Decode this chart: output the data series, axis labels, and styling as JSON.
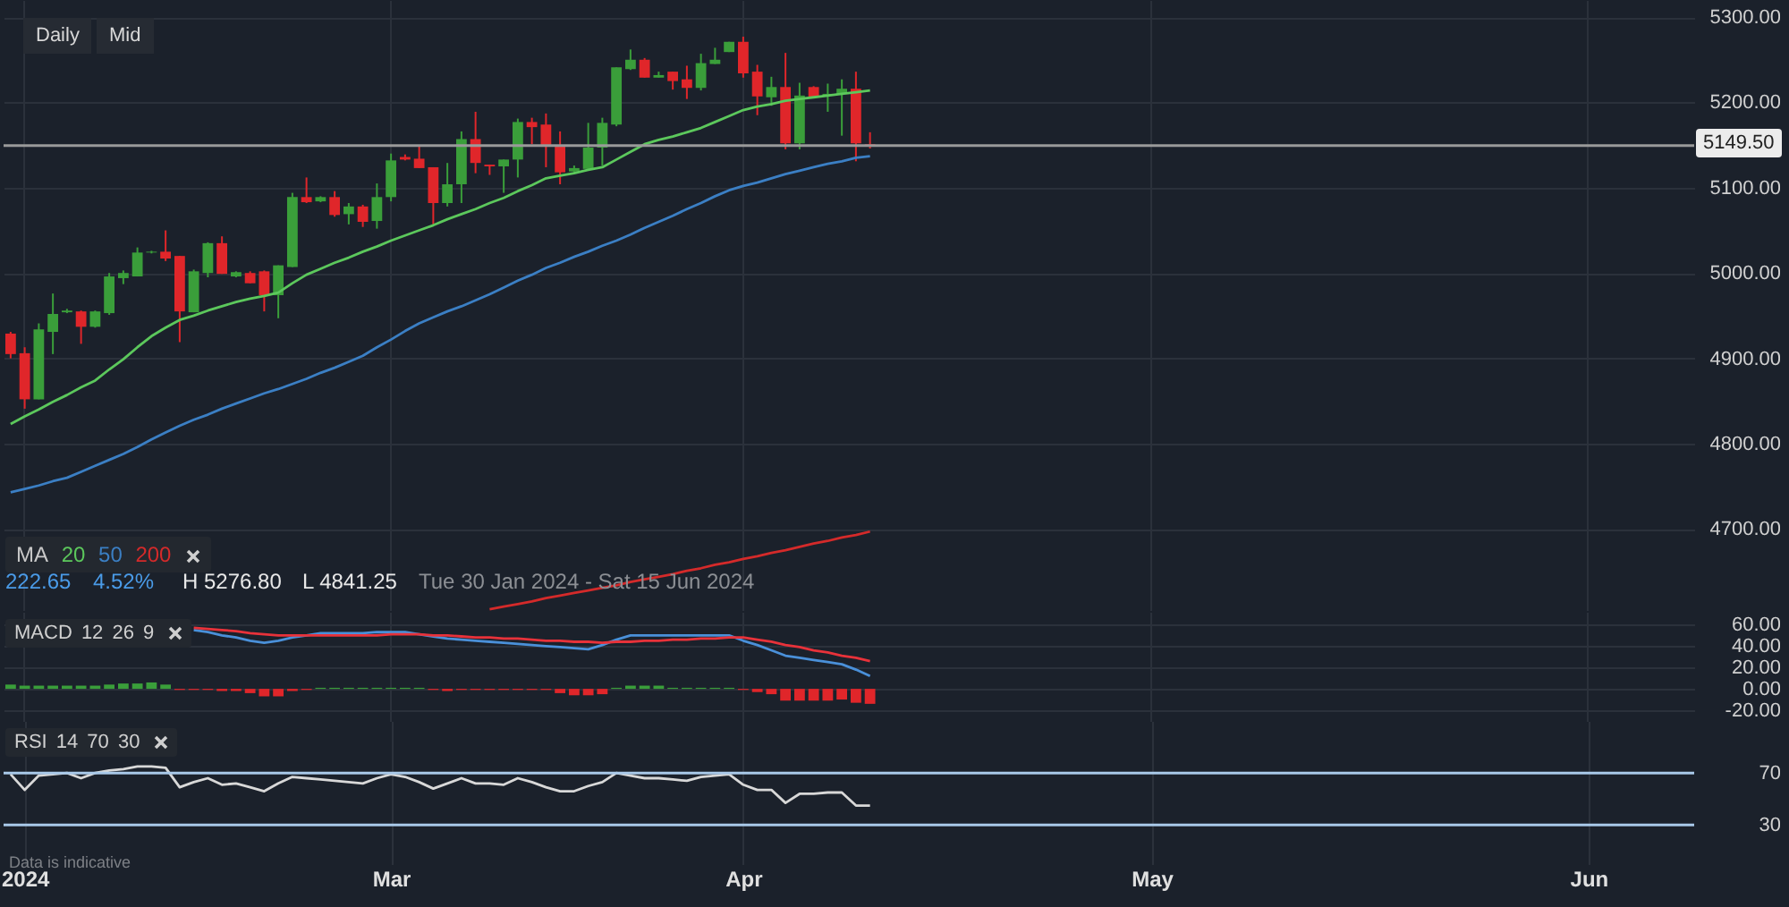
{
  "chart_data": [
    {
      "type": "candlestick",
      "annotations": [
        "Daily",
        "Mid",
        "222.65",
        "4.52%",
        "H 5276.80",
        "L 4841.25",
        "Tue 30 Jan 2024 - Sat 15 Jun 2024"
      ],
      "legend_title": "MA",
      "legend": "bottom left",
      "categories": [
        null,
        null,
        null,
        null,
        null,
        null,
        null,
        null,
        null,
        null,
        null,
        null,
        null,
        null,
        null,
        null,
        null,
        null,
        null,
        null,
        null,
        null,
        null,
        null,
        null,
        null,
        null,
        null,
        null,
        null,
        null,
        null,
        null,
        null,
        null,
        null,
        null,
        null,
        null,
        null,
        null,
        null,
        null,
        null,
        null,
        null,
        null,
        null,
        null,
        null,
        null,
        null,
        null,
        null,
        null,
        null,
        null,
        null,
        null,
        null,
        null,
        null,
        null,
        null,
        null,
        null,
        null,
        null,
        null,
        null,
        null,
        null,
        null,
        null,
        null,
        null,
        null,
        null,
        null,
        null,
        null,
        null,
        null,
        null,
        null,
        null,
        null,
        null,
        null,
        null,
        null,
        null,
        null,
        null,
        null,
        null,
        null,
        null,
        null,
        null,
        null,
        null,
        null,
        null,
        null,
        null,
        null,
        null,
        null,
        null,
        null,
        null,
        null,
        null,
        null,
        null,
        null,
        null,
        null,
        null
      ],
      "ohlc": [
        [
          4929,
          4931,
          4900,
          4905
        ],
        [
          4906,
          4913,
          4841,
          4852
        ],
        [
          4852,
          4941,
          4852,
          4934
        ],
        [
          4931,
          4976,
          4905,
          4952
        ],
        [
          4954,
          4958,
          4953,
          4956
        ],
        [
          4955,
          4956,
          4917,
          4937
        ],
        [
          4937,
          4956,
          4936,
          4955
        ],
        [
          4953,
          5000,
          4951,
          4996
        ],
        [
          4994,
          5003,
          4987,
          5000
        ],
        [
          4996,
          5030,
          4996,
          5024
        ],
        [
          5024,
          5026,
          5023,
          5025
        ],
        [
          5025,
          5050,
          5014,
          5017
        ],
        [
          5020,
          5020,
          4919,
          4955
        ],
        [
          4954,
          5004,
          4954,
          5002
        ],
        [
          5000,
          5036,
          4995,
          5035
        ],
        [
          5035,
          5043,
          4999,
          4999
        ],
        [
          4996,
          5002,
          4995,
          5001
        ],
        [
          5000,
          5002,
          4988,
          4988
        ],
        [
          5002,
          5003,
          4955,
          4974
        ],
        [
          4974,
          5009,
          4947,
          5009
        ],
        [
          5007,
          5094,
          5007,
          5089
        ],
        [
          5089,
          5112,
          5082,
          5083
        ],
        [
          5084,
          5090,
          5083,
          5089
        ],
        [
          5089,
          5096,
          5066,
          5068
        ],
        [
          5069,
          5082,
          5057,
          5078
        ],
        [
          5078,
          5080,
          5054,
          5060
        ],
        [
          5061,
          5105,
          5052,
          5089
        ],
        [
          5089,
          5140,
          5084,
          5132
        ],
        [
          5136,
          5139,
          5132,
          5133
        ],
        [
          5134,
          5150,
          5123,
          5123
        ],
        [
          5124,
          5124,
          5057,
          5082
        ],
        [
          5082,
          5129,
          5078,
          5104
        ],
        [
          5104,
          5166,
          5082,
          5157
        ],
        [
          5157,
          5189,
          5117,
          5129
        ],
        [
          5127,
          5127,
          5115,
          5125
        ],
        [
          5125,
          5133,
          5094,
          5133
        ],
        [
          5133,
          5181,
          5112,
          5177
        ],
        [
          5177,
          5182,
          5151,
          5171
        ],
        [
          5174,
          5187,
          5124,
          5148
        ],
        [
          5149,
          5166,
          5104,
          5118
        ],
        [
          5119,
          5126,
          5117,
          5123
        ],
        [
          5122,
          5176,
          5122,
          5147
        ],
        [
          5147,
          5182,
          5126,
          5176
        ],
        [
          5174,
          5241,
          5172,
          5241
        ],
        [
          5239,
          5262,
          5238,
          5250
        ],
        [
          5250,
          5252,
          5229,
          5229
        ],
        [
          5229,
          5236,
          5229,
          5232
        ],
        [
          5236,
          5236,
          5215,
          5225
        ],
        [
          5227,
          5243,
          5204,
          5217
        ],
        [
          5217,
          5257,
          5214,
          5246
        ],
        [
          5245,
          5264,
          5245,
          5250
        ],
        [
          5259,
          5271,
          5259,
          5271
        ],
        [
          5271,
          5277,
          5229,
          5234
        ],
        [
          5236,
          5244,
          5185,
          5207
        ],
        [
          5206,
          5230,
          5196,
          5218
        ],
        [
          5218,
          5258,
          5145,
          5152
        ],
        [
          5152,
          5223,
          5145,
          5208
        ],
        [
          5218,
          5219,
          5206,
          5206
        ],
        [
          5208,
          5222,
          5189,
          5210
        ],
        [
          5210,
          5227,
          5161,
          5216
        ],
        [
          5216,
          5236,
          5131,
          5152
        ],
        [
          5151,
          5165,
          5146,
          5149.5
        ],
        null,
        null,
        null,
        null,
        null,
        null,
        null,
        null,
        null,
        null,
        null,
        null,
        null,
        null,
        null,
        null,
        null,
        null,
        null,
        null,
        null,
        null,
        null,
        null,
        null,
        null,
        null,
        null,
        null,
        null,
        null,
        null,
        null,
        null,
        null,
        null,
        null,
        null,
        null,
        null,
        null,
        null,
        null,
        null,
        null,
        null,
        null,
        null,
        null,
        null,
        null,
        null,
        null,
        null,
        null,
        null,
        null,
        null
      ],
      "colors": [
        "#e0262a",
        "#e0262a",
        "#3a9e3a",
        "#3a9e3a",
        "#3a9e3a",
        "#e0262a",
        "#3a9e3a",
        "#3a9e3a",
        "#3a9e3a",
        "#3a9e3a",
        "#3a9e3a",
        "#e0262a",
        "#e0262a",
        "#3a9e3a",
        "#3a9e3a",
        "#e0262a",
        "#3a9e3a",
        "#e0262a",
        "#e0262a",
        "#3a9e3a",
        "#3a9e3a",
        "#e0262a",
        "#3a9e3a",
        "#e0262a",
        "#3a9e3a",
        "#e0262a",
        "#3a9e3a",
        "#3a9e3a",
        "#e0262a",
        "#e0262a",
        "#e0262a",
        "#3a9e3a",
        "#3a9e3a",
        "#e0262a",
        "#e0262a",
        "#3a9e3a",
        "#3a9e3a",
        "#e0262a",
        "#e0262a",
        "#e0262a",
        "#3a9e3a",
        "#3a9e3a",
        "#3a9e3a",
        "#3a9e3a",
        "#3a9e3a",
        "#e0262a",
        "#3a9e3a",
        "#e0262a",
        "#e0262a",
        "#3a9e3a",
        "#3a9e3a",
        "#3a9e3a",
        "#e0262a",
        "#e0262a",
        "#3a9e3a",
        "#e0262a",
        "#3a9e3a",
        "#e0262a",
        "#3a9e3a",
        "#3a9e3a",
        "#e0262a",
        "#e0262a",
        null,
        null,
        null,
        null,
        null,
        null,
        null,
        null,
        null,
        null,
        null,
        null,
        null,
        null,
        null,
        null,
        null,
        null,
        null,
        null,
        null,
        null,
        null,
        null,
        null,
        null,
        null,
        null,
        null,
        null,
        null,
        null,
        null,
        null,
        null,
        null,
        null,
        null,
        null,
        null,
        null,
        null,
        null,
        null,
        null,
        null,
        null,
        null,
        null,
        null,
        null,
        null,
        null,
        null,
        null,
        null,
        null,
        null
      ],
      "series": [
        {
          "name": "20",
          "type": "line",
          "color": "#5cc85c",
          "values": [
            4823,
            4832,
            4840,
            4849,
            4857,
            4866,
            4874,
            4887,
            4899,
            4913,
            4926,
            4936,
            4945,
            4950,
            4956,
            4961,
            4966,
            4970,
            4973,
            4977,
            4988,
            4998,
            5005,
            5012,
            5018,
            5025,
            5031,
            5038,
            5044,
            5050,
            5056,
            5063,
            5069,
            5075,
            5082,
            5088,
            5096,
            5103,
            5111,
            5114,
            5117,
            5121,
            5124,
            5133,
            5142,
            5151,
            5156,
            5160,
            5165,
            5170,
            5177,
            5184,
            5191,
            5195,
            5198,
            5202,
            5204,
            5206,
            5208,
            5210,
            5212,
            5214,
            null,
            null,
            null,
            null,
            null,
            null,
            null,
            null,
            null,
            null,
            null,
            null,
            null,
            null,
            null,
            null,
            null,
            null,
            null,
            null,
            null,
            null,
            null,
            null,
            null,
            null,
            null,
            null,
            null,
            null,
            null,
            null,
            null,
            null,
            null,
            null,
            null,
            null,
            null,
            null,
            null,
            null,
            null,
            null,
            null,
            null,
            null,
            null,
            null,
            null,
            null,
            null,
            null,
            null,
            null,
            null,
            null,
            null
          ]
        },
        {
          "name": "50",
          "type": "line",
          "color": "#3b7fc4",
          "values": [
            4743,
            4747,
            4751,
            4756,
            4760,
            4767,
            4774,
            4781,
            4788,
            4796,
            4805,
            4813,
            4821,
            4828,
            4834,
            4841,
            4847,
            4853,
            4859,
            4864,
            4870,
            4876,
            4883,
            4889,
            4896,
            4903,
            4913,
            4922,
            4932,
            4941,
            4948,
            4955,
            4961,
            4968,
            4975,
            4983,
            4991,
            4998,
            5006,
            5012,
            5019,
            5025,
            5032,
            5038,
            5045,
            5053,
            5060,
            5067,
            5075,
            5082,
            5090,
            5097,
            5102,
            5106,
            5111,
            5116,
            5120,
            5124,
            5128,
            5131,
            5135,
            5137,
            null,
            null,
            null,
            null,
            null,
            null,
            null,
            null,
            null,
            null,
            null,
            null,
            null,
            null,
            null,
            null,
            null,
            null,
            null,
            null,
            null,
            null,
            null,
            null,
            null,
            null,
            null,
            null,
            null,
            null,
            null,
            null,
            null,
            null,
            null,
            null,
            null,
            null,
            null,
            null,
            null,
            null,
            null,
            null,
            null,
            null,
            null,
            null,
            null,
            null,
            null,
            null,
            null,
            null,
            null,
            null,
            null,
            null
          ]
        },
        {
          "name": "200",
          "type": "line",
          "color": "#d42a2a",
          "values": [
            null,
            null,
            null,
            null,
            null,
            null,
            null,
            null,
            null,
            null,
            null,
            null,
            null,
            null,
            null,
            null,
            null,
            null,
            null,
            null,
            null,
            null,
            null,
            null,
            null,
            null,
            null,
            null,
            null,
            null,
            null,
            null,
            null,
            null,
            4606,
            4609,
            4612,
            4615,
            4619,
            4622,
            4625,
            4628,
            4631,
            4634,
            4638,
            4641,
            4644,
            4647,
            4651,
            4654,
            4658,
            4661,
            4665,
            4668,
            4672,
            4675,
            4679,
            4683,
            4686,
            4690,
            4693,
            4697,
            null,
            null,
            null,
            null,
            null,
            null,
            null,
            null,
            null,
            null,
            null,
            null,
            null,
            null,
            null,
            null,
            null,
            null,
            null,
            null,
            null,
            null,
            null,
            null,
            null,
            null,
            null,
            null,
            null,
            null,
            null,
            null,
            null,
            null,
            null,
            null,
            null,
            null,
            null,
            null,
            null,
            null,
            null,
            null,
            null,
            null,
            null,
            null,
            null,
            null,
            null,
            null,
            null,
            null,
            null,
            null,
            null,
            null
          ]
        }
      ],
      "ylim": [
        4605,
        5320
      ],
      "yticks": [
        {
          "value": 4700,
          "label": "4700.00"
        },
        {
          "value": 4800,
          "label": "4800.00"
        },
        {
          "value": 4900,
          "label": "4900.00"
        },
        {
          "value": 5000,
          "label": "5000.00"
        },
        {
          "value": 5100,
          "label": "5100.00"
        },
        {
          "value": 5200,
          "label": "5200.00"
        },
        {
          "value": 5300,
          "label": "5300.00"
        }
      ],
      "grid": true,
      "tick_labels": "y",
      "ref_lines": [
        {
          "axis": "y",
          "value": 5149.5,
          "label": "5149.50",
          "color": "#9a9a9a"
        }
      ]
    },
    {
      "type": "line",
      "title": "MACD 12 26 9",
      "categories": [
        null,
        null,
        null,
        null,
        null,
        null,
        null,
        null,
        null,
        null,
        null,
        null,
        null,
        null,
        null,
        null,
        null,
        null,
        null,
        null,
        null,
        null,
        null,
        null,
        null,
        null,
        null,
        null,
        null,
        null,
        null,
        null,
        null,
        null,
        null,
        null,
        null,
        null,
        null,
        null,
        null,
        null,
        null,
        null,
        null,
        null,
        null,
        null,
        null,
        null,
        null,
        null,
        null,
        null,
        null,
        null,
        null,
        null,
        null,
        null,
        null,
        null,
        null,
        null,
        null,
        null,
        null,
        null,
        null,
        null,
        null,
        null,
        null,
        null,
        null,
        null,
        null,
        null,
        null,
        null,
        null,
        null,
        null,
        null,
        null,
        null,
        null,
        null,
        null,
        null,
        null,
        null,
        null,
        null,
        null,
        null,
        null,
        null,
        null,
        null,
        null,
        null,
        null,
        null,
        null,
        null,
        null,
        null,
        null,
        null,
        null,
        null,
        null,
        null,
        null,
        null,
        null,
        null,
        null,
        null
      ],
      "series": [
        {
          "type": "line",
          "color": "#4a90d9",
          "values": [
            null,
            null,
            null,
            null,
            null,
            null,
            null,
            null,
            null,
            null,
            null,
            null,
            null,
            55,
            53,
            50,
            48,
            45,
            43,
            45,
            48,
            50,
            52,
            52,
            52,
            52,
            53,
            53,
            53,
            51,
            49,
            47,
            46,
            45,
            44,
            43,
            42,
            41,
            40,
            39,
            38,
            37,
            41,
            46,
            50,
            50,
            50,
            50,
            50,
            50,
            50,
            50,
            45,
            41,
            36,
            31,
            29,
            27,
            25,
            23,
            18,
            12,
            null,
            null,
            null,
            null,
            null,
            null,
            null,
            null,
            null,
            null,
            null,
            null,
            null,
            null,
            null,
            null,
            null,
            null,
            null,
            null,
            null,
            null,
            null,
            null,
            null,
            null,
            null,
            null,
            null,
            null,
            null,
            null,
            null,
            null,
            null,
            null,
            null,
            null,
            null,
            null,
            null,
            null,
            null,
            null,
            null,
            null,
            null,
            null,
            null,
            null,
            null,
            null,
            null,
            null,
            null,
            null,
            null,
            null
          ]
        },
        {
          "type": "line",
          "color": "#e8323a",
          "values": [
            null,
            null,
            null,
            null,
            null,
            null,
            null,
            null,
            null,
            null,
            null,
            null,
            null,
            57,
            56,
            55,
            54,
            52,
            51,
            50,
            50,
            50,
            50,
            50,
            50,
            50,
            50,
            51,
            51,
            51,
            50,
            50,
            49,
            48,
            48,
            47,
            47,
            46,
            45,
            45,
            44,
            44,
            43,
            44,
            44,
            45,
            45,
            46,
            46,
            47,
            47,
            48,
            48,
            46,
            44,
            41,
            39,
            36,
            34,
            31,
            29,
            26,
            null,
            null,
            null,
            null,
            null,
            null,
            null,
            null,
            null,
            null,
            null,
            null,
            null,
            null,
            null,
            null,
            null,
            null,
            null,
            null,
            null,
            null,
            null,
            null,
            null,
            null,
            null,
            null,
            null,
            null,
            null,
            null,
            null,
            null,
            null,
            null,
            null,
            null,
            null,
            null,
            null,
            null,
            null,
            null,
            null,
            null,
            null,
            null,
            null,
            null,
            null,
            null,
            null,
            null,
            null,
            null,
            null,
            null
          ]
        },
        {
          "type": "bar",
          "values": [
            4,
            3,
            3,
            3,
            3,
            3,
            3,
            4,
            5,
            5,
            6,
            4,
            -1,
            -1,
            -1,
            -2,
            -2,
            -4,
            -7,
            -7,
            -2,
            -1,
            1,
            1,
            1,
            1,
            1,
            1,
            1,
            1,
            -1,
            -2,
            -1,
            -1,
            -1,
            -1,
            -1,
            -1,
            -1,
            -4,
            -6,
            -6,
            -5,
            1,
            3,
            3,
            3,
            1,
            1,
            1,
            1,
            1,
            -1,
            -3,
            -5,
            -11,
            -11,
            -11,
            -11,
            -10,
            -13,
            -14,
            null,
            null,
            null,
            null,
            null,
            null,
            null,
            null,
            null,
            null,
            null,
            null,
            null,
            null,
            null,
            null,
            null,
            null,
            null,
            null,
            null,
            null,
            null,
            null,
            null,
            null,
            null,
            null,
            null,
            null,
            null,
            null,
            null,
            null,
            null,
            null,
            null,
            null,
            null,
            null,
            null,
            null,
            null,
            null,
            null,
            null,
            null,
            null,
            null,
            null,
            null,
            null,
            null,
            null,
            null,
            null,
            null,
            null
          ],
          "colors": [
            "#3a9e3a",
            "#3a9e3a",
            "#3a9e3a",
            "#3a9e3a",
            "#3a9e3a",
            "#3a9e3a",
            "#3a9e3a",
            "#3a9e3a",
            "#3a9e3a",
            "#3a9e3a",
            "#3a9e3a",
            "#3a9e3a",
            "#e0262a",
            "#e0262a",
            "#e0262a",
            "#e0262a",
            "#e0262a",
            "#e0262a",
            "#e0262a",
            "#e0262a",
            "#e0262a",
            "#e0262a",
            "#3a9e3a",
            "#3a9e3a",
            "#3a9e3a",
            "#3a9e3a",
            "#3a9e3a",
            "#3a9e3a",
            "#3a9e3a",
            "#3a9e3a",
            "#e0262a",
            "#e0262a",
            "#e0262a",
            "#e0262a",
            "#e0262a",
            "#e0262a",
            "#e0262a",
            "#e0262a",
            "#e0262a",
            "#e0262a",
            "#e0262a",
            "#e0262a",
            "#e0262a",
            "#3a9e3a",
            "#3a9e3a",
            "#3a9e3a",
            "#3a9e3a",
            "#3a9e3a",
            "#3a9e3a",
            "#3a9e3a",
            "#3a9e3a",
            "#3a9e3a",
            "#e0262a",
            "#e0262a",
            "#e0262a",
            "#e0262a",
            "#e0262a",
            "#e0262a",
            "#e0262a",
            "#e0262a",
            "#e0262a",
            "#e0262a",
            null,
            null,
            null,
            null,
            null,
            null,
            null,
            null,
            null,
            null,
            null,
            null,
            null,
            null,
            null,
            null,
            null,
            null,
            null,
            null,
            null,
            null,
            null,
            null,
            null,
            null,
            null,
            null,
            null,
            null,
            null,
            null,
            null,
            null,
            null,
            null,
            null,
            null,
            null,
            null,
            null,
            null,
            null,
            null,
            null,
            null,
            null,
            null,
            null,
            null,
            null,
            null,
            null,
            null,
            null,
            null,
            null,
            null
          ]
        }
      ],
      "ylim": [
        -30,
        72
      ],
      "yticks": [
        {
          "value": -20,
          "label": "-20.00"
        },
        {
          "value": 0,
          "label": "0.00"
        },
        {
          "value": 20,
          "label": "20.00"
        },
        {
          "value": 40,
          "label": "40.00"
        },
        {
          "value": 60,
          "label": "60.00"
        }
      ],
      "grid": true,
      "tick_labels": "y"
    },
    {
      "type": "line",
      "title": "RSI 14 70 30",
      "annotations": [
        "Data is indicative"
      ],
      "categories": [
        null,
        "2024",
        null,
        null,
        null,
        null,
        null,
        null,
        null,
        null,
        null,
        null,
        null,
        null,
        null,
        null,
        null,
        null,
        null,
        null,
        null,
        null,
        null,
        null,
        null,
        null,
        null,
        "Mar",
        null,
        null,
        null,
        null,
        null,
        null,
        null,
        null,
        null,
        null,
        null,
        null,
        null,
        null,
        null,
        null,
        null,
        null,
        null,
        null,
        null,
        null,
        null,
        null,
        "Apr",
        null,
        null,
        null,
        null,
        null,
        null,
        null,
        null,
        null,
        null,
        null,
        null,
        null,
        null,
        null,
        null,
        null,
        null,
        null,
        null,
        null,
        null,
        null,
        null,
        null,
        null,
        null,
        null,
        "May",
        null,
        null,
        null,
        null,
        null,
        null,
        null,
        null,
        null,
        null,
        null,
        null,
        null,
        null,
        null,
        null,
        null,
        null,
        null,
        null,
        null,
        null,
        null,
        null,
        null,
        null,
        null,
        null,
        null,
        null,
        "Jun",
        null,
        null,
        null,
        null,
        null,
        null,
        null
      ],
      "series": [
        {
          "color": "#d8d8d8",
          "values": [
            69,
            57,
            68,
            69,
            70,
            66,
            70,
            72,
            73,
            75,
            75,
            74,
            59,
            63,
            66,
            61,
            62,
            59,
            56,
            62,
            67,
            66,
            65,
            64,
            63,
            62,
            66,
            69,
            67,
            63,
            58,
            62,
            66,
            62,
            62,
            61,
            66,
            63,
            59,
            56,
            56,
            60,
            63,
            70,
            68,
            66,
            66,
            65,
            64,
            67,
            68,
            69,
            61,
            57,
            57,
            47,
            54,
            54,
            55,
            55,
            45,
            45,
            null,
            null,
            null,
            null,
            null,
            null,
            null,
            null,
            null,
            null,
            null,
            null,
            null,
            null,
            null,
            null,
            null,
            null,
            null,
            null,
            null,
            null,
            null,
            null,
            null,
            null,
            null,
            null,
            null,
            null,
            null,
            null,
            null,
            null,
            null,
            null,
            null,
            null,
            null,
            null,
            null,
            null,
            null,
            null,
            null,
            null,
            null,
            null,
            null,
            null,
            null,
            null,
            null,
            null,
            null,
            null,
            null,
            null
          ]
        }
      ],
      "ylim": [
        0,
        110
      ],
      "yticks": [
        30,
        70
      ],
      "grid": "x",
      "ref_lines": [
        {
          "axis": "y",
          "value": 70,
          "color": "#a9c9e9"
        },
        {
          "axis": "y",
          "value": 30,
          "color": "#a9c9e9"
        }
      ]
    }
  ]
}
